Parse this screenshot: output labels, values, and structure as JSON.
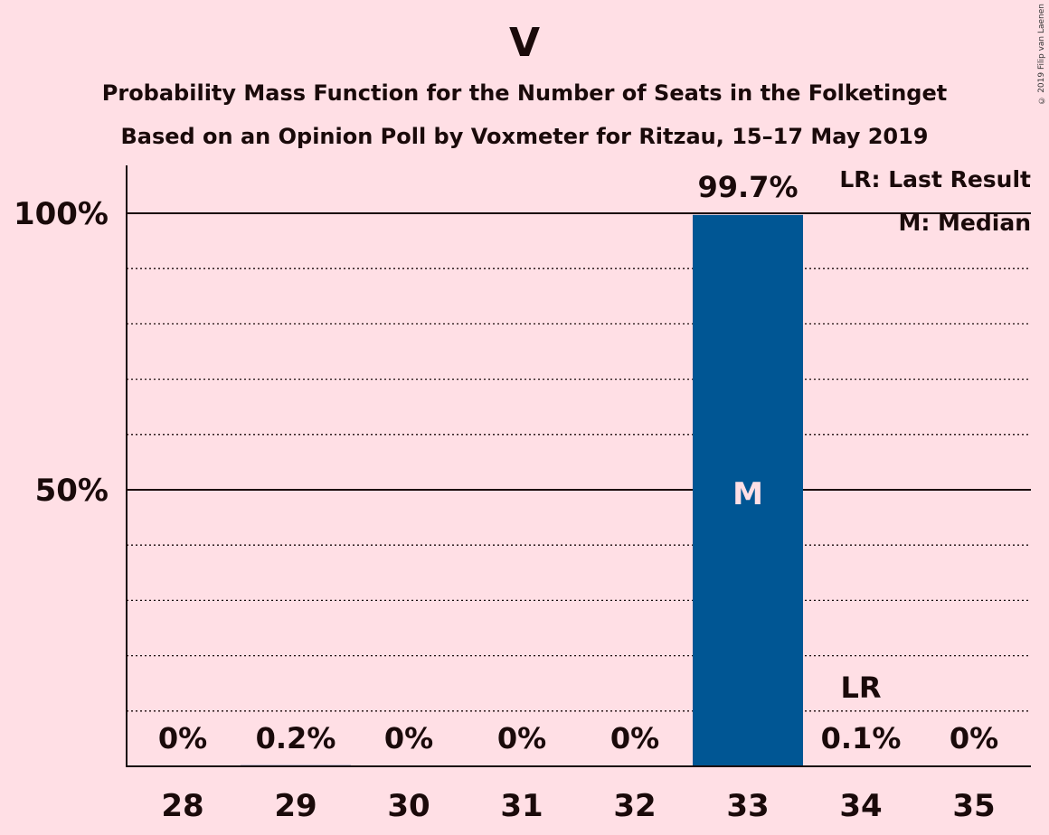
{
  "header": {
    "title": "V",
    "subtitle1": "Probability Mass Function for the Number of Seats in the Folketinget",
    "subtitle2": "Based on an Opinion Poll by Voxmeter for Ritzau, 15–17 May 2019",
    "copyright": "© 2019 Filip van Laenen"
  },
  "legend": {
    "last_result": "LR: Last Result",
    "median": "M: Median"
  },
  "chart_data": {
    "type": "bar",
    "title": "V",
    "categories": [
      "28",
      "29",
      "30",
      "31",
      "32",
      "33",
      "34",
      "35"
    ],
    "values": [
      0,
      0.2,
      0,
      0,
      0,
      99.7,
      0.1,
      0
    ],
    "value_labels": [
      "0%",
      "0.2%",
      "0%",
      "0%",
      "0%",
      "99.7%",
      "0.1%",
      "0%"
    ],
    "y_ticks": [
      {
        "value": 50,
        "label": "50%"
      },
      {
        "value": 100,
        "label": "100%"
      }
    ],
    "ylim": [
      0,
      100
    ],
    "minor_grid_step": 10,
    "median_category": "33",
    "median_label": "M",
    "last_result_category": "34",
    "last_result_label": "LR",
    "colors": {
      "bar": "#005694",
      "background": "#ffdfe5",
      "text": "#1a0a0a",
      "median_text": "#ffdfe5"
    }
  }
}
